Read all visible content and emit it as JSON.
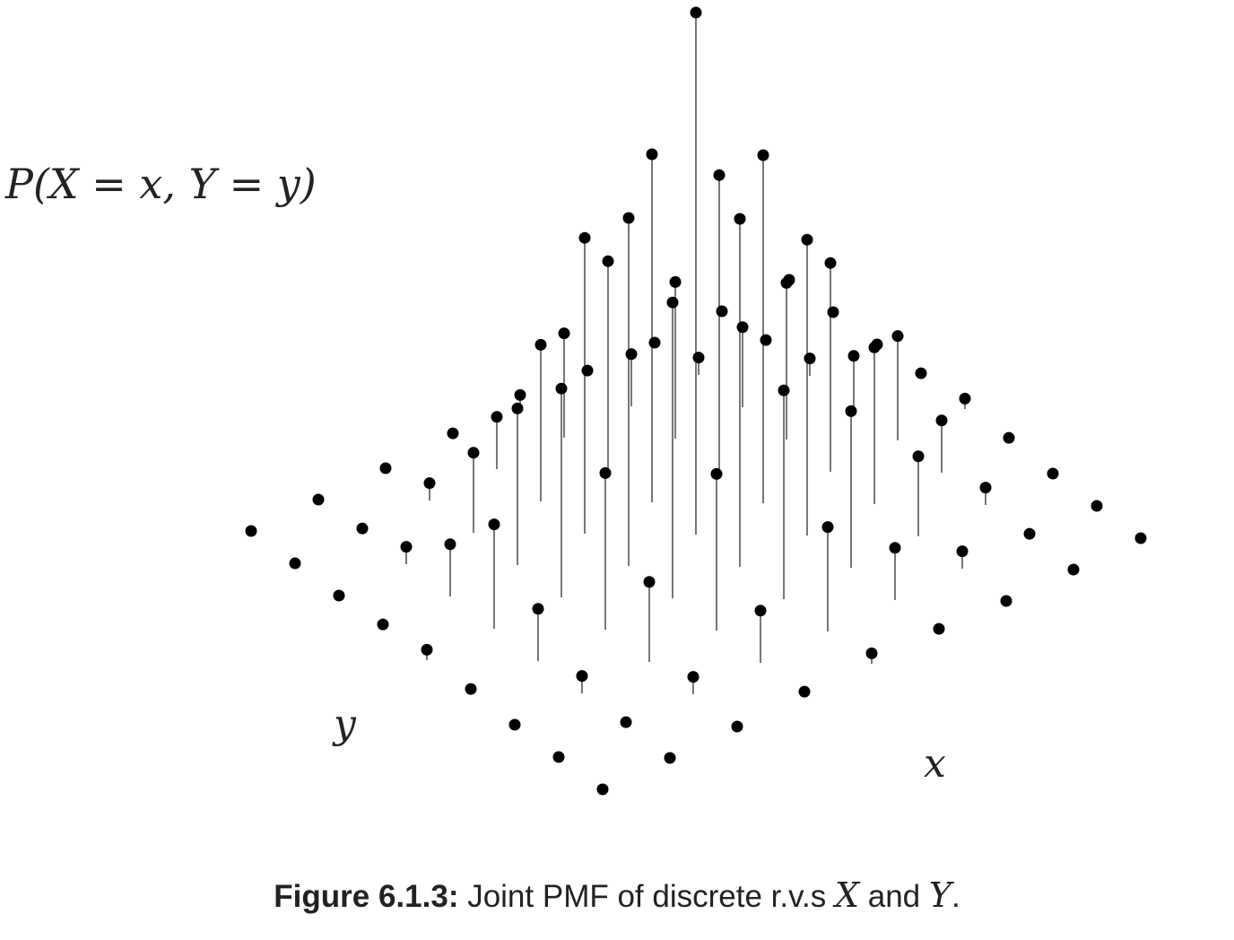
{
  "figure": {
    "zlabel": "P(X = x, Y = y)",
    "xlabel": "x",
    "ylabel": "y",
    "caption_number": "Figure 6.1.3:",
    "caption_text_1": " Joint PMF of discrete r.v.s ",
    "caption_var_x": "X",
    "caption_text_2": " and ",
    "caption_var_y": "Y",
    "caption_end": "."
  },
  "chart_data": {
    "type": "stem3d",
    "xlabel": "x",
    "ylabel": "y",
    "zlabel": "P(X = x, Y = y)",
    "grid": false,
    "x": [
      0,
      1,
      2,
      3,
      4,
      5,
      6,
      7,
      8
    ],
    "y": [
      0,
      1,
      2,
      3,
      4,
      5,
      6,
      7,
      8
    ],
    "pmf": [
      [
        0.0,
        0.0,
        0.0,
        0.002,
        0.006,
        0.002,
        0.0,
        0.0,
        0.0
      ],
      [
        0.0,
        0.002,
        0.01,
        0.03,
        0.06,
        0.03,
        0.01,
        0.002,
        0.0
      ],
      [
        0.0,
        0.01,
        0.046,
        0.09,
        0.12,
        0.09,
        0.046,
        0.01,
        0.0
      ],
      [
        0.002,
        0.03,
        0.09,
        0.17,
        0.2,
        0.17,
        0.09,
        0.03,
        0.002
      ],
      [
        0.006,
        0.06,
        0.12,
        0.2,
        0.3,
        0.2,
        0.12,
        0.06,
        0.006
      ],
      [
        0.002,
        0.03,
        0.09,
        0.17,
        0.2,
        0.17,
        0.09,
        0.03,
        0.002
      ],
      [
        0.0,
        0.01,
        0.046,
        0.09,
        0.12,
        0.09,
        0.046,
        0.01,
        0.0
      ],
      [
        0.0,
        0.002,
        0.01,
        0.03,
        0.06,
        0.03,
        0.01,
        0.002,
        0.0
      ],
      [
        0.0,
        0.0,
        0.0,
        0.002,
        0.006,
        0.002,
        0.0,
        0.0,
        0.0
      ]
    ],
    "colors": {
      "stem": "#555555",
      "marker": "#000000"
    }
  }
}
